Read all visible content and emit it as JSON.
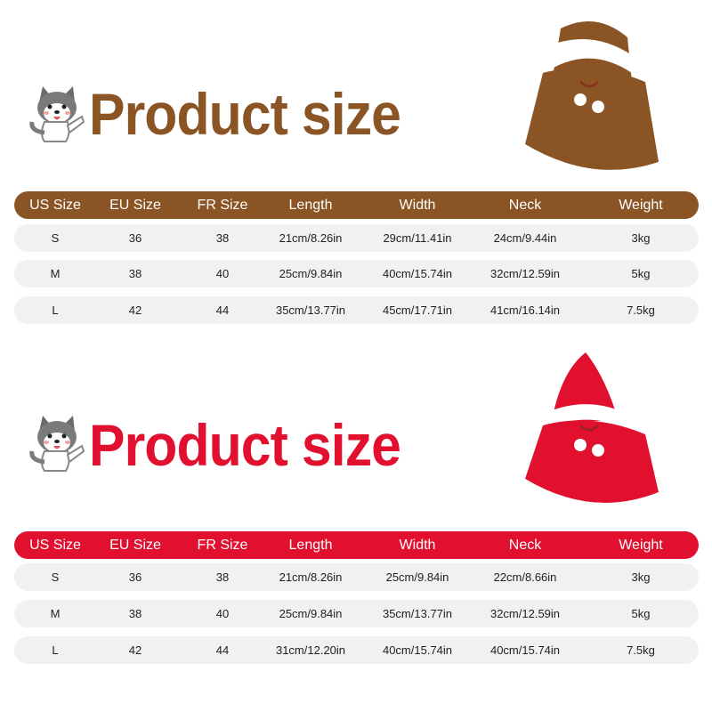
{
  "colors": {
    "brown": "#8B5424",
    "red": "#E0102E",
    "row_bg": "#f1f1f1"
  },
  "columns": [
    "US Size",
    "EU Size",
    "FR Size",
    "Length",
    "Width",
    "Neck",
    "Weight"
  ],
  "sections": [
    {
      "title": "Product size",
      "theme": "brown",
      "product_image": "brown-reindeer-cape",
      "rows": [
        [
          "S",
          "36",
          "38",
          "21cm/8.26in",
          "29cm/11.41in",
          "24cm/9.44in",
          "3kg"
        ],
        [
          "M",
          "38",
          "40",
          "25cm/9.84in",
          "40cm/15.74in",
          "32cm/12.59in",
          "5kg"
        ],
        [
          "L",
          "42",
          "44",
          "35cm/13.77in",
          "45cm/17.71in",
          "41cm/16.14in",
          "7.5kg"
        ]
      ]
    },
    {
      "title": "Product size",
      "theme": "red",
      "product_image": "red-santa-cape",
      "rows": [
        [
          "S",
          "36",
          "38",
          "21cm/8.26in",
          "25cm/9.84in",
          "22cm/8.66in",
          "3kg"
        ],
        [
          "M",
          "38",
          "40",
          "25cm/9.84in",
          "35cm/13.77in",
          "32cm/12.59in",
          "5kg"
        ],
        [
          "L",
          "42",
          "44",
          "31cm/12.20in",
          "40cm/15.74in",
          "40cm/15.74in",
          "7.5kg"
        ]
      ]
    }
  ]
}
